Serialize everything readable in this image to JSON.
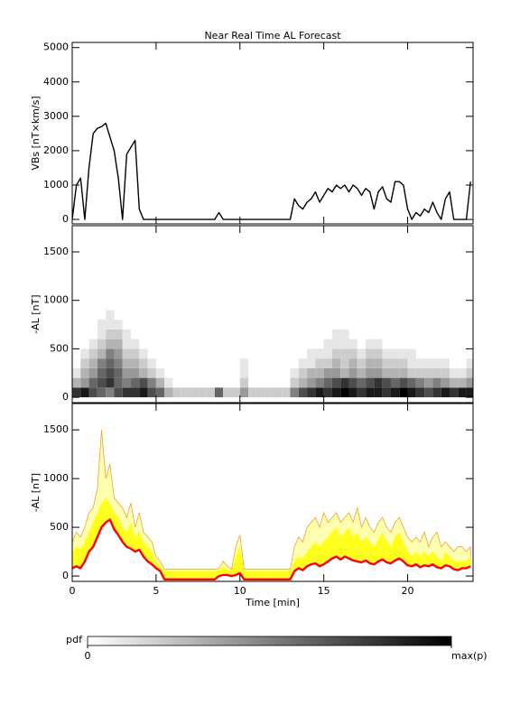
{
  "chart_data": [
    {
      "type": "line",
      "title": "Near Real Time AL Forecast",
      "ylabel": "VBs [nT×km/s]",
      "x": [
        0,
        0.25,
        0.5,
        0.75,
        1,
        1.25,
        1.5,
        1.75,
        2,
        2.25,
        2.5,
        2.75,
        3,
        3.25,
        3.5,
        3.75,
        4,
        4.25,
        4.5,
        4.75,
        5,
        5.25,
        5.5,
        5.75,
        6,
        6.25,
        6.5,
        6.75,
        7,
        7.25,
        7.5,
        7.75,
        8,
        8.25,
        8.5,
        8.75,
        9,
        9.25,
        9.5,
        9.75,
        10,
        10.25,
        10.5,
        10.75,
        11,
        11.25,
        11.5,
        11.75,
        12,
        12.25,
        12.5,
        12.75,
        13,
        13.25,
        13.5,
        13.75,
        14,
        14.25,
        14.5,
        14.75,
        15,
        15.25,
        15.5,
        15.75,
        16,
        16.25,
        16.5,
        16.75,
        17,
        17.25,
        17.5,
        17.75,
        18,
        18.25,
        18.5,
        18.75,
        19,
        19.25,
        19.5,
        19.75,
        20,
        20.25,
        20.5,
        20.75,
        21,
        21.25,
        21.5,
        21.75,
        22,
        22.25,
        22.5,
        22.75,
        23,
        23.25,
        23.5,
        23.75
      ],
      "series": [
        {
          "color": "#000000",
          "values": [
            0,
            1000,
            1200,
            0,
            1500,
            2500,
            2650,
            2700,
            2800,
            2400,
            2000,
            1200,
            0,
            1900,
            2100,
            2300,
            300,
            0,
            0,
            0,
            0,
            0,
            0,
            0,
            0,
            0,
            0,
            0,
            0,
            0,
            0,
            0,
            0,
            0,
            0,
            200,
            0,
            0,
            0,
            0,
            0,
            0,
            0,
            0,
            0,
            0,
            0,
            0,
            0,
            0,
            0,
            0,
            0,
            600,
            400,
            300,
            500,
            600,
            800,
            500,
            700,
            900,
            800,
            1000,
            900,
            1000,
            800,
            1000,
            900,
            700,
            900,
            800,
            300,
            800,
            950,
            600,
            500,
            1100,
            1100,
            1000,
            300,
            0,
            200,
            100,
            300,
            200,
            500,
            200,
            0,
            600,
            800,
            0,
            0,
            0,
            0,
            1100
          ]
        }
      ],
      "xlim": [
        0,
        23.9
      ],
      "xticks": [
        0,
        5,
        10,
        15,
        20
      ],
      "xtick_labels": false,
      "ylim": [
        -130,
        5150
      ],
      "yticks": [
        0,
        1000,
        2000,
        3000,
        4000,
        5000
      ]
    },
    {
      "type": "heatmap",
      "ylabel": "-AL [nT]",
      "x_bins": [
        0,
        0.5,
        1,
        1.5,
        2,
        2.5,
        3,
        3.5,
        4,
        4.5,
        5,
        5.5,
        6,
        6.5,
        7,
        7.5,
        8,
        8.5,
        9,
        9.5,
        10,
        10.5,
        11,
        11.5,
        12,
        12.5,
        13,
        13.5,
        14,
        14.5,
        15,
        15.5,
        16,
        16.5,
        17,
        17.5,
        18,
        18.5,
        19,
        19.5,
        20,
        20.5,
        21,
        21.5,
        22,
        22.5,
        23,
        23.5,
        24
      ],
      "y_bins": [
        0,
        100,
        200,
        300,
        400,
        500,
        600,
        700,
        800,
        900
      ],
      "z": [
        [
          0.8,
          0.9,
          0.7,
          0.6,
          0.5,
          0.7,
          0.8,
          0.8,
          0.9,
          0.7,
          0.6,
          0.3,
          0.2,
          0.2,
          0.2,
          0.2,
          0.2,
          0.6,
          0.2,
          0.2,
          0.4,
          0.2,
          0.2,
          0.2,
          0.2,
          0.2,
          0.5,
          0.7,
          0.8,
          0.9,
          0.8,
          0.9,
          1.0,
          0.9,
          0.8,
          0.9,
          0.9,
          0.8,
          0.9,
          1.0,
          0.9,
          0.8,
          0.7,
          0.8,
          0.9,
          0.8,
          0.9,
          0.9
        ],
        [
          0.3,
          0.4,
          0.6,
          0.7,
          0.8,
          0.6,
          0.5,
          0.6,
          0.7,
          0.5,
          0.3,
          0.1,
          0,
          0,
          0,
          0,
          0,
          0,
          0,
          0,
          0.2,
          0,
          0,
          0,
          0,
          0,
          0.2,
          0.3,
          0.4,
          0.5,
          0.6,
          0.7,
          0.8,
          0.7,
          0.6,
          0.7,
          0.8,
          0.7,
          0.6,
          0.7,
          0.6,
          0.5,
          0.4,
          0.5,
          0.4,
          0.3,
          0.3,
          0.4
        ],
        [
          0.1,
          0.3,
          0.4,
          0.6,
          0.7,
          0.6,
          0.4,
          0.4,
          0.3,
          0.2,
          0.1,
          0,
          0,
          0,
          0,
          0,
          0,
          0,
          0,
          0,
          0.1,
          0,
          0,
          0,
          0,
          0,
          0.1,
          0.2,
          0.3,
          0.3,
          0.4,
          0.4,
          0.3,
          0.4,
          0.3,
          0.4,
          0.4,
          0.3,
          0.3,
          0.3,
          0.2,
          0.2,
          0.2,
          0.2,
          0.2,
          0.1,
          0.1,
          0.2
        ],
        [
          0,
          0.2,
          0.3,
          0.5,
          0.6,
          0.5,
          0.3,
          0.3,
          0.2,
          0.1,
          0,
          0,
          0,
          0,
          0,
          0,
          0,
          0,
          0,
          0,
          0.1,
          0,
          0,
          0,
          0,
          0,
          0,
          0.1,
          0.1,
          0.2,
          0.2,
          0.3,
          0.2,
          0.3,
          0.2,
          0.3,
          0.3,
          0.2,
          0.2,
          0.2,
          0.1,
          0.1,
          0.1,
          0.1,
          0.1,
          0,
          0,
          0.1
        ],
        [
          0,
          0.1,
          0.2,
          0.3,
          0.5,
          0.4,
          0.2,
          0.2,
          0.1,
          0,
          0,
          0,
          0,
          0,
          0,
          0,
          0,
          0,
          0,
          0,
          0,
          0,
          0,
          0,
          0,
          0,
          0,
          0,
          0.1,
          0.1,
          0.1,
          0.2,
          0.2,
          0.2,
          0.1,
          0.2,
          0.2,
          0.1,
          0.1,
          0.1,
          0.1,
          0,
          0,
          0,
          0,
          0,
          0,
          0
        ],
        [
          0,
          0,
          0.1,
          0.2,
          0.3,
          0.3,
          0.1,
          0.1,
          0,
          0,
          0,
          0,
          0,
          0,
          0,
          0,
          0,
          0,
          0,
          0,
          0,
          0,
          0,
          0,
          0,
          0,
          0,
          0,
          0,
          0,
          0.1,
          0.1,
          0.1,
          0.1,
          0,
          0.1,
          0.1,
          0,
          0,
          0,
          0,
          0,
          0,
          0,
          0,
          0,
          0,
          0
        ],
        [
          0,
          0,
          0,
          0.1,
          0.2,
          0.2,
          0.1,
          0,
          0,
          0,
          0,
          0,
          0,
          0,
          0,
          0,
          0,
          0,
          0,
          0,
          0,
          0,
          0,
          0,
          0,
          0,
          0,
          0,
          0,
          0,
          0,
          0.1,
          0.1,
          0,
          0,
          0,
          0,
          0,
          0,
          0,
          0,
          0,
          0,
          0,
          0,
          0,
          0,
          0
        ],
        [
          0,
          0,
          0,
          0.1,
          0.1,
          0.1,
          0,
          0,
          0,
          0,
          0,
          0,
          0,
          0,
          0,
          0,
          0,
          0,
          0,
          0,
          0,
          0,
          0,
          0,
          0,
          0,
          0,
          0,
          0,
          0,
          0,
          0,
          0,
          0,
          0,
          0,
          0,
          0,
          0,
          0,
          0,
          0,
          0,
          0,
          0,
          0,
          0,
          0
        ],
        [
          0,
          0,
          0,
          0,
          0.1,
          0,
          0,
          0,
          0,
          0,
          0,
          0,
          0,
          0,
          0,
          0,
          0,
          0,
          0,
          0,
          0,
          0,
          0,
          0,
          0,
          0,
          0,
          0,
          0,
          0,
          0,
          0,
          0,
          0,
          0,
          0,
          0,
          0,
          0,
          0,
          0,
          0,
          0,
          0,
          0,
          0,
          0,
          0
        ]
      ],
      "zlim": [
        0,
        1
      ],
      "xlim": [
        0,
        23.9
      ],
      "xticks": [
        0,
        5,
        10,
        15,
        20
      ],
      "xtick_labels": false,
      "ylim": [
        -55,
        1770
      ],
      "yticks": [
        0,
        500,
        1000,
        1500
      ]
    },
    {
      "type": "area",
      "ylabel": "-AL [nT]",
      "xlabel": "Time [min]",
      "x": [
        0,
        0.25,
        0.5,
        0.75,
        1,
        1.25,
        1.5,
        1.75,
        2,
        2.25,
        2.5,
        2.75,
        3,
        3.25,
        3.5,
        3.75,
        4,
        4.25,
        4.5,
        4.75,
        5,
        5.25,
        5.5,
        5.75,
        6,
        6.25,
        6.5,
        6.75,
        7,
        7.25,
        7.5,
        7.75,
        8,
        8.25,
        8.5,
        8.75,
        9,
        9.25,
        9.5,
        9.75,
        10,
        10.25,
        10.5,
        10.75,
        11,
        11.25,
        11.5,
        11.75,
        12,
        12.25,
        12.5,
        12.75,
        13,
        13.25,
        13.5,
        13.75,
        14,
        14.25,
        14.5,
        14.75,
        15,
        15.25,
        15.5,
        15.75,
        16,
        16.25,
        16.5,
        16.75,
        17,
        17.25,
        17.5,
        17.75,
        18,
        18.25,
        18.5,
        18.75,
        19,
        19.25,
        19.5,
        19.75,
        20,
        20.25,
        20.5,
        20.75,
        21,
        21.25,
        21.5,
        21.75,
        22,
        22.25,
        22.5,
        22.75,
        23,
        23.25,
        23.5,
        23.75
      ],
      "series": [
        {
          "color": "#ffffb0",
          "edgecolor": "#f0a030",
          "values": [
            350,
            450,
            400,
            500,
            650,
            700,
            900,
            1500,
            1000,
            1150,
            800,
            750,
            700,
            600,
            750,
            500,
            650,
            450,
            400,
            350,
            200,
            150,
            70,
            70,
            70,
            70,
            70,
            70,
            70,
            70,
            70,
            70,
            70,
            70,
            70,
            80,
            150,
            100,
            70,
            300,
            420,
            70,
            70,
            70,
            70,
            70,
            70,
            70,
            70,
            70,
            70,
            70,
            70,
            300,
            400,
            350,
            500,
            550,
            600,
            500,
            650,
            550,
            600,
            650,
            550,
            600,
            650,
            550,
            700,
            500,
            600,
            500,
            450,
            550,
            600,
            500,
            450,
            550,
            600,
            500,
            400,
            350,
            400,
            350,
            450,
            300,
            400,
            450,
            300,
            350,
            300,
            250,
            300,
            300,
            250,
            300
          ]
        },
        {
          "color": "#ffff1e",
          "values": [
            250,
            300,
            280,
            350,
            450,
            550,
            650,
            750,
            800,
            750,
            650,
            600,
            500,
            450,
            550,
            400,
            450,
            350,
            300,
            250,
            150,
            100,
            50,
            50,
            50,
            50,
            50,
            50,
            50,
            50,
            50,
            50,
            50,
            50,
            50,
            60,
            100,
            60,
            50,
            200,
            300,
            50,
            50,
            50,
            50,
            50,
            50,
            50,
            50,
            50,
            50,
            50,
            50,
            150,
            200,
            180,
            250,
            300,
            350,
            300,
            350,
            400,
            450,
            500,
            400,
            450,
            500,
            400,
            450,
            350,
            400,
            350,
            300,
            380,
            450,
            350,
            300,
            400,
            450,
            350,
            250,
            200,
            250,
            200,
            250,
            200,
            250,
            200,
            150,
            250,
            200,
            150,
            150,
            150,
            150,
            200
          ]
        },
        {
          "color": "#ff0000",
          "values": [
            80,
            100,
            80,
            150,
            250,
            300,
            400,
            500,
            550,
            580,
            480,
            420,
            350,
            300,
            280,
            250,
            270,
            200,
            150,
            120,
            80,
            50,
            -35,
            -35,
            -35,
            -35,
            -35,
            -35,
            -35,
            -35,
            -35,
            -35,
            -35,
            -35,
            -35,
            0,
            10,
            10,
            0,
            10,
            30,
            -35,
            -35,
            -35,
            -35,
            -35,
            -35,
            -35,
            -35,
            -35,
            -35,
            -35,
            -35,
            50,
            80,
            60,
            100,
            120,
            130,
            100,
            120,
            150,
            180,
            200,
            170,
            200,
            180,
            160,
            150,
            140,
            160,
            130,
            120,
            150,
            170,
            140,
            130,
            160,
            180,
            150,
            110,
            100,
            120,
            90,
            110,
            100,
            120,
            90,
            80,
            110,
            100,
            70,
            60,
            80,
            80,
            100
          ]
        }
      ],
      "xlim": [
        0,
        23.9
      ],
      "xticks": [
        0,
        5,
        10,
        15,
        20
      ],
      "xtick_labels": true,
      "ylim": [
        -55,
        1770
      ],
      "yticks": [
        0,
        500,
        1000,
        1500
      ]
    },
    {
      "type": "colorbar",
      "label": "pdf",
      "zlim": [
        0,
        1
      ],
      "ticks": [
        0,
        {
          "value": 1,
          "label": "max(p)"
        }
      ]
    }
  ]
}
